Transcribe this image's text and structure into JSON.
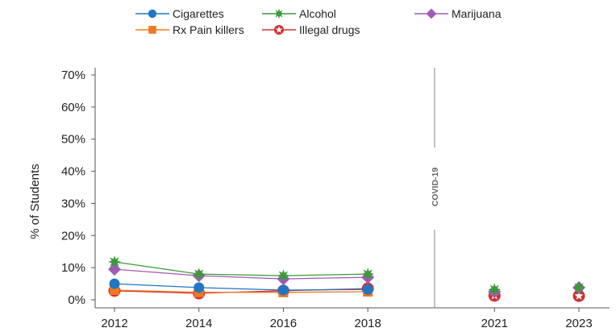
{
  "chart_data": {
    "type": "line",
    "ylabel": "% of Students",
    "y_ticks": [
      "0%",
      "10%",
      "20%",
      "30%",
      "40%",
      "50%",
      "60%",
      "70%"
    ],
    "ylim": [
      0,
      70
    ],
    "categories": [
      "2012",
      "2014",
      "2016",
      "2018",
      "2021",
      "2023"
    ],
    "x": [
      2012,
      2014,
      2016,
      2018,
      2021,
      2023
    ],
    "covid_label": "COVID-19",
    "covid_x": 2019.5,
    "legend_placement": "top",
    "grid": false,
    "series": [
      {
        "name": "Cigarettes",
        "color": "#1f77c4",
        "marker": "circle",
        "values": [
          5.0,
          3.8,
          3.0,
          3.2,
          null,
          null
        ]
      },
      {
        "name": "Alcohol",
        "color": "#3a9a3a",
        "marker": "star",
        "values": [
          11.8,
          8.0,
          7.5,
          8.0,
          3.2,
          3.8
        ]
      },
      {
        "name": "Marijuana",
        "color": "#a05ab8",
        "marker": "diamond",
        "values": [
          9.5,
          7.5,
          6.5,
          7.0,
          2.5,
          3.8
        ]
      },
      {
        "name": "Rx Pain killers",
        "color": "#f07820",
        "marker": "square",
        "values": [
          3.0,
          2.3,
          2.3,
          2.5,
          null,
          null
        ]
      },
      {
        "name": "Illegal drugs",
        "color": "#d42f2f",
        "marker": "ringstar",
        "values": [
          2.8,
          2.0,
          2.8,
          3.5,
          1.3,
          1.2
        ]
      }
    ]
  }
}
